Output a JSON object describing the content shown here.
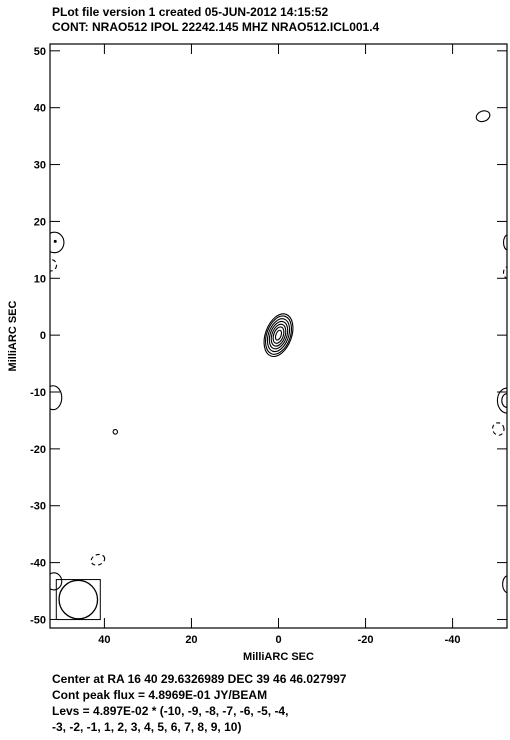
{
  "header": {
    "line1": "PLot file version 1  created 05-JUN-2012 14:15:52",
    "line2": "CONT: NRAO512  IPOL  22242.145 MHZ  NRAO512.ICL001.4"
  },
  "footer": {
    "line1": "Center at RA 16 40 29.6326989  DEC 39 46 46.027997",
    "line2": "Cont peak flux =  4.8969E-01 JY/BEAM",
    "line3": "Levs = 4.897E-02 * (-10, -9, -8, -7, -6, -5, -4,",
    "line4": "-3, -2, -1, 1, 2, 3, 4, 5, 6, 7, 8, 9, 10)"
  },
  "chart_data": {
    "type": "contour",
    "xlabel": "MilliARC SEC",
    "ylabel": "MilliARC SEC",
    "xlim": [
      52.5,
      -52.5
    ],
    "ylim": [
      -51.5,
      51.2
    ],
    "x_ticks": [
      40,
      20,
      0,
      -20,
      -40
    ],
    "y_ticks": [
      50,
      40,
      30,
      20,
      10,
      0,
      -10,
      -20,
      -30,
      -40,
      -50
    ],
    "tick_labels_x": [
      "40",
      "20",
      "0",
      "-20",
      "-40"
    ],
    "tick_labels_y": [
      "50",
      "40",
      "30",
      "20",
      "10",
      "0",
      "-10",
      "-20",
      "-30",
      "-40",
      "-50"
    ],
    "peak_flux": "4.8969E-01 JY/BEAM",
    "levels": [
      -10,
      -9,
      -8,
      -7,
      -6,
      -5,
      -4,
      -3,
      -2,
      -1,
      1,
      2,
      3,
      4,
      5,
      6,
      7,
      8,
      9,
      10
    ],
    "central_source": {
      "x": 0,
      "y": 0,
      "contour_radii_x": [
        0.6,
        1.1,
        1.5,
        1.9,
        2.3,
        2.7,
        3.0
      ],
      "contour_radii_y": [
        0.9,
        1.5,
        2.0,
        2.5,
        3.0,
        3.5,
        3.9
      ]
    },
    "positive_features": [
      {
        "x": -47,
        "y": 38.5,
        "rx": 1.6,
        "ry": 0.9
      },
      {
        "x": 37.5,
        "y": -17,
        "rx": 0.5,
        "ry": 0.4
      }
    ],
    "negative_features": [
      {
        "x": 41.5,
        "y": -39.5,
        "rx": 1.6,
        "ry": 0.9
      },
      {
        "x": -50.5,
        "y": -16.5,
        "rx": 1.3,
        "ry": 1.1
      }
    ],
    "beam": {
      "x": 46,
      "y": -46.5,
      "major": 4.4,
      "minor": 3.4,
      "pa_deg": -45
    }
  }
}
